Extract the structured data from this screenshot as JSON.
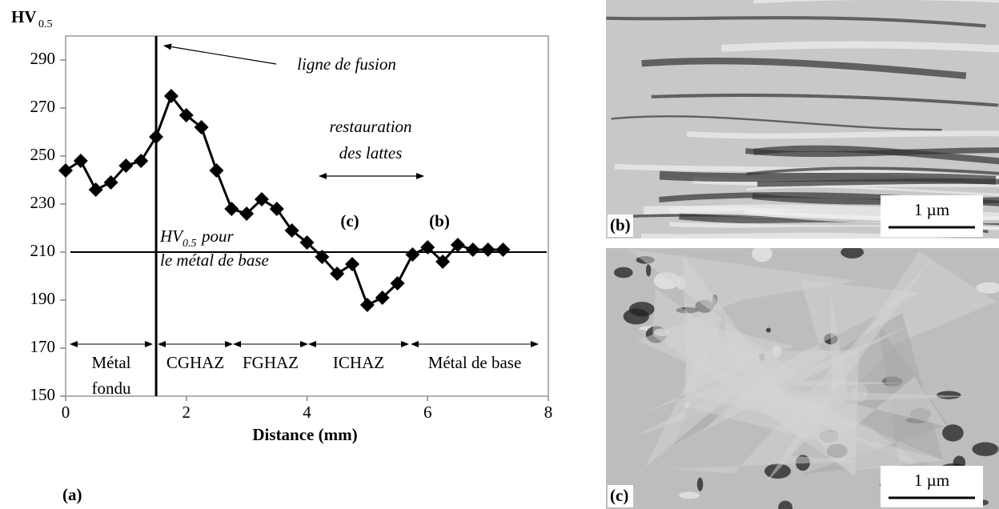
{
  "chart_data": {
    "type": "line",
    "panel_label": "(a)",
    "ylabel": {
      "main": "HV",
      "sub": "0.5"
    },
    "xlabel": "Distance (mm)",
    "x": [
      0,
      0.25,
      0.5,
      0.75,
      1,
      1.25,
      1.5,
      1.75,
      2,
      2.25,
      2.5,
      2.75,
      3,
      3.25,
      3.5,
      3.75,
      4,
      4.25,
      4.5,
      4.75,
      5,
      5.25,
      5.5,
      5.75,
      6,
      6.25,
      6.5,
      6.75,
      7,
      7.25
    ],
    "values": [
      244,
      248,
      236,
      239,
      246,
      248,
      258,
      275,
      267,
      262,
      244,
      228,
      226,
      232,
      228,
      219,
      214,
      208,
      201,
      205,
      188,
      191,
      197,
      209,
      212,
      206,
      213,
      211,
      211,
      211
    ],
    "color": "#000000",
    "xlim": [
      0,
      8
    ],
    "xticks": [
      0,
      2,
      4,
      6,
      8
    ],
    "ylim": [
      150,
      300
    ],
    "yticks": [
      150,
      170,
      190,
      210,
      230,
      250,
      270,
      290
    ],
    "fusion_line_x": 1.5,
    "base_hardness": 210,
    "annotations": {
      "fusion": "ligne de fusion",
      "restoration": [
        "restauration",
        "des lattes"
      ],
      "point_c": "(c)",
      "point_b": "(b)",
      "base": {
        "main": "HV",
        "sub": "0.5",
        "rest": "pour",
        "line2": "le métal de base"
      }
    },
    "zones": [
      [
        "Métal",
        "fondu"
      ],
      [
        "CGHAZ"
      ],
      [
        "FGHAZ"
      ],
      [
        "ICHAZ"
      ],
      [
        "Métal de base"
      ]
    ]
  },
  "micrographs": [
    {
      "label": "(b)",
      "scale": "1 µm"
    },
    {
      "label": "(c)",
      "scale": "1 µm"
    }
  ]
}
